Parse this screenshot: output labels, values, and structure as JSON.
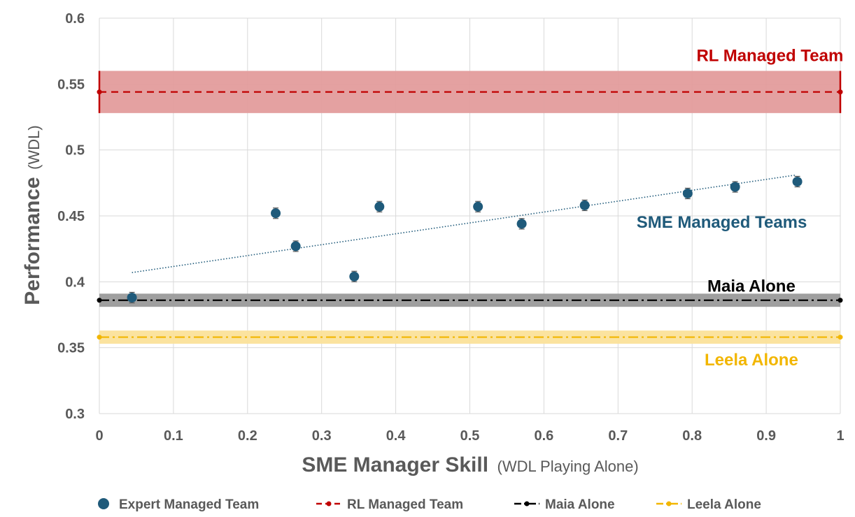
{
  "chart_data": {
    "type": "scatter",
    "title": "",
    "xlabel": "SME Manager Skill",
    "xlabel_sub": "(WDL Playing Alone)",
    "ylabel": "Performance",
    "ylabel_sub": "(WDL)",
    "xlim": [
      0,
      1
    ],
    "ylim": [
      0.3,
      0.6
    ],
    "xticks": [
      0,
      0.1,
      0.2,
      0.3,
      0.4,
      0.5,
      0.6,
      0.7,
      0.8,
      0.9,
      1
    ],
    "xtick_labels": [
      "0",
      "0.1",
      "0.2",
      "0.3",
      "0.4",
      "0.5",
      "0.6",
      "0.7",
      "0.8",
      "0.9",
      "1"
    ],
    "yticks": [
      0.3,
      0.35,
      0.4,
      0.45,
      0.5,
      0.55,
      0.6
    ],
    "ytick_labels": [
      "0.3",
      "0.35",
      "0.4",
      "0.45",
      "0.5",
      "0.55",
      "0.6"
    ],
    "grid": true,
    "legend_position": "bottom",
    "scatter": {
      "name": "Expert Managed Team",
      "color": "#1f5a7a",
      "points": [
        {
          "x": 0.044,
          "y": 0.388,
          "err": 0.004
        },
        {
          "x": 0.238,
          "y": 0.452,
          "err": 0.004
        },
        {
          "x": 0.265,
          "y": 0.427,
          "err": 0.004
        },
        {
          "x": 0.344,
          "y": 0.404,
          "err": 0.004
        },
        {
          "x": 0.378,
          "y": 0.457,
          "err": 0.004
        },
        {
          "x": 0.511,
          "y": 0.457,
          "err": 0.004
        },
        {
          "x": 0.57,
          "y": 0.444,
          "err": 0.004
        },
        {
          "x": 0.655,
          "y": 0.458,
          "err": 0.004
        },
        {
          "x": 0.794,
          "y": 0.467,
          "err": 0.004
        },
        {
          "x": 0.858,
          "y": 0.472,
          "err": 0.004
        },
        {
          "x": 0.942,
          "y": 0.476,
          "err": 0.004
        }
      ],
      "trendline": {
        "x": [
          0.044,
          0.94
        ],
        "y": [
          0.407,
          0.481
        ]
      }
    },
    "reference_lines": [
      {
        "name": "RL Managed Team",
        "y": 0.544,
        "band": [
          0.528,
          0.56
        ],
        "color": "#c00000",
        "band_color": "#e39c9c",
        "dash": "dash"
      },
      {
        "name": "Maia Alone",
        "y": 0.386,
        "band": [
          0.381,
          0.391
        ],
        "color": "#000000",
        "band_color": "#9a9a9a",
        "dash": "dashdot"
      },
      {
        "name": "Leela Alone",
        "y": 0.358,
        "band": [
          0.353,
          0.363
        ],
        "color": "#f2b600",
        "band_color": "#fbe29a",
        "dash": "dashdot"
      }
    ],
    "annotations": [
      {
        "text": "RL Managed Team",
        "x": 0.905,
        "y": 0.5675,
        "color": "#c00000"
      },
      {
        "text": "SME Managed Teams",
        "x": 0.84,
        "y": 0.441,
        "color": "#1f5a7a"
      },
      {
        "text": "Maia Alone",
        "x": 0.88,
        "y": 0.3925,
        "color": "#000000"
      },
      {
        "text": "Leela Alone",
        "x": 0.88,
        "y": 0.3365,
        "color": "#f2b600"
      }
    ],
    "legend": [
      {
        "label": "Expert Managed Team",
        "color": "#1f5a7a",
        "kind": "marker"
      },
      {
        "label": "RL Managed Team",
        "color": "#c00000",
        "kind": "dash-line"
      },
      {
        "label": "Maia Alone",
        "color": "#000000",
        "kind": "dashdot-line"
      },
      {
        "label": "Leela Alone",
        "color": "#f2b600",
        "kind": "dashdot-line"
      }
    ]
  }
}
